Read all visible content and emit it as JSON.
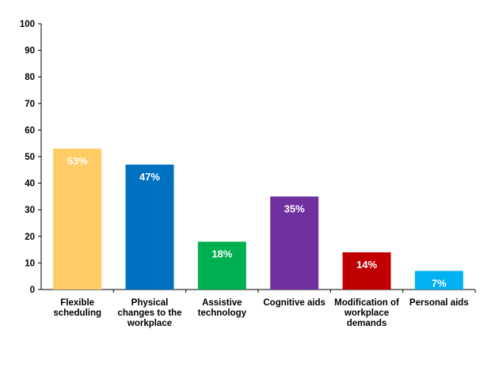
{
  "chart_data": {
    "type": "bar",
    "categories": [
      "Flexible scheduling",
      "Physical changes to the workplace",
      "Assistive technology",
      "Cognitive aids",
      "Modification of workplace demands",
      "Personal aids"
    ],
    "values": [
      53,
      47,
      18,
      35,
      14,
      7
    ],
    "value_labels": [
      "53%",
      "47%",
      "18%",
      "35%",
      "14%",
      "7%"
    ],
    "colors": [
      "#FFCC66",
      "#0070C0",
      "#00B050",
      "#7030A0",
      "#C00000",
      "#00B0F0"
    ],
    "ylim": [
      0,
      100
    ],
    "yticks": [
      0,
      10,
      20,
      30,
      40,
      50,
      60,
      70,
      80,
      90,
      100
    ],
    "grid": false
  }
}
